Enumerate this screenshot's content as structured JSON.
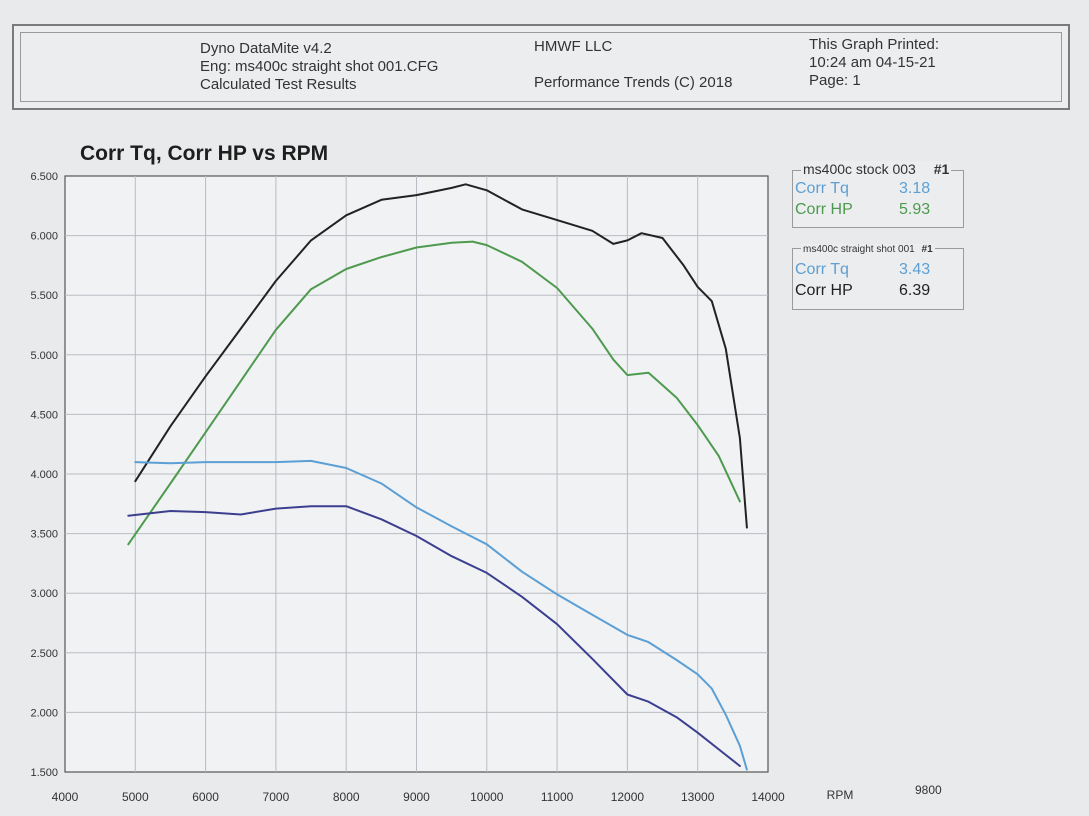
{
  "header": {
    "left_lines": [
      "Dyno DataMite v4.2",
      "Eng: ms400c straight shot 001.CFG",
      "Calculated Test Results"
    ],
    "company": "HMWF LLC",
    "copyright": "Performance Trends (C) 2018",
    "right_lines": [
      "This Graph Printed:",
      "10:24 am 04-15-21",
      "Page: 1"
    ]
  },
  "legend": [
    {
      "header": "ms400c stock 003",
      "run": "#1",
      "rows": [
        {
          "label": "Corr Tq",
          "value": "3.18",
          "color": "#5b9fd4"
        },
        {
          "label": "Corr HP",
          "value": "5.93",
          "color": "#4e9a4e"
        }
      ]
    },
    {
      "header": "ms400c straight shot 001",
      "run": "#1",
      "rows": [
        {
          "label": "Corr Tq",
          "value": "3.43",
          "color": "#5b9fd4"
        },
        {
          "label": "Corr HP",
          "value": "6.39",
          "color": "#222222"
        }
      ]
    }
  ],
  "extra_labels": {
    "rpm_value": "9800"
  },
  "chart_data": {
    "type": "line",
    "title": "Corr Tq, Corr HP vs RPM",
    "xlabel": "RPM",
    "ylabel": "",
    "xlim": [
      4000,
      14000
    ],
    "ylim": [
      1.5,
      6.5
    ],
    "xticks": [
      "4000",
      "5000",
      "6000",
      "7000",
      "8000",
      "9000",
      "10000",
      "11000",
      "12000",
      "13000",
      "14000"
    ],
    "yticks": [
      "1.500",
      "2.000",
      "2.500",
      "3.000",
      "3.500",
      "4.000",
      "4.500",
      "5.000",
      "5.500",
      "6.000",
      "6.500"
    ],
    "grid": true,
    "legend_position": "right",
    "series": [
      {
        "name": "Corr HP",
        "run": "ms400c straight shot 001",
        "color": "#222222",
        "x": [
          5000,
          5500,
          6000,
          6500,
          7000,
          7500,
          8000,
          8500,
          9000,
          9500,
          9700,
          10000,
          10500,
          11000,
          11500,
          11800,
          12000,
          12200,
          12500,
          12800,
          13000,
          13200,
          13400,
          13600,
          13700
        ],
        "y": [
          3.94,
          4.4,
          4.82,
          5.22,
          5.62,
          5.96,
          6.17,
          6.3,
          6.34,
          6.4,
          6.43,
          6.38,
          6.22,
          6.13,
          6.04,
          5.93,
          5.96,
          6.02,
          5.98,
          5.75,
          5.57,
          5.45,
          5.05,
          4.3,
          3.55
        ]
      },
      {
        "name": "Corr HP",
        "run": "ms400c stock 003",
        "color": "#4e9a4e",
        "x": [
          4900,
          5500,
          6000,
          6500,
          7000,
          7500,
          8000,
          8500,
          9000,
          9500,
          9800,
          10000,
          10500,
          11000,
          11500,
          11800,
          12000,
          12300,
          12700,
          13000,
          13300,
          13600
        ],
        "y": [
          3.41,
          3.92,
          4.35,
          4.78,
          5.21,
          5.55,
          5.72,
          5.82,
          5.9,
          5.94,
          5.95,
          5.92,
          5.78,
          5.56,
          5.22,
          4.96,
          4.83,
          4.85,
          4.64,
          4.41,
          4.15,
          3.77
        ]
      },
      {
        "name": "Corr Tq",
        "run": "ms400c straight shot 001",
        "color": "#5b9fd4",
        "x": [
          5000,
          5500,
          6000,
          6500,
          7000,
          7500,
          8000,
          8500,
          9000,
          9500,
          10000,
          10500,
          11000,
          11500,
          12000,
          12300,
          12700,
          13000,
          13200,
          13400,
          13600,
          13700
        ],
        "y": [
          4.1,
          4.09,
          4.1,
          4.1,
          4.1,
          4.11,
          4.05,
          3.92,
          3.72,
          3.56,
          3.41,
          3.18,
          2.99,
          2.82,
          2.65,
          2.59,
          2.44,
          2.32,
          2.2,
          1.98,
          1.72,
          1.52
        ]
      },
      {
        "name": "Corr Tq",
        "run": "ms400c stock 003",
        "color": "#3c3f8f",
        "x": [
          4900,
          5500,
          6000,
          6500,
          7000,
          7500,
          8000,
          8500,
          9000,
          9500,
          10000,
          10500,
          11000,
          11500,
          12000,
          12300,
          12700,
          13000,
          13300,
          13600
        ],
        "y": [
          3.65,
          3.69,
          3.68,
          3.66,
          3.71,
          3.73,
          3.73,
          3.62,
          3.48,
          3.31,
          3.17,
          2.97,
          2.74,
          2.45,
          2.15,
          2.09,
          1.96,
          1.83,
          1.69,
          1.55
        ]
      }
    ]
  }
}
